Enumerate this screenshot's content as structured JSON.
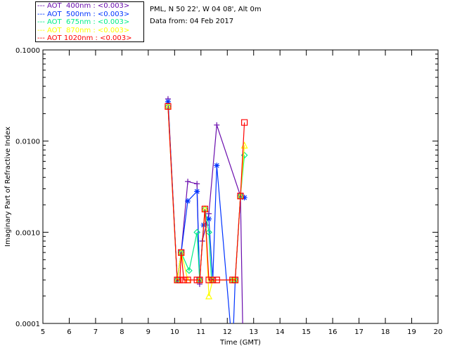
{
  "header": {
    "site_line": "PML, N 50 22', W 04 08', Alt 0m",
    "date_line": "Data from: 04 Feb 2017"
  },
  "chart_data": {
    "type": "line",
    "xlabel": "Time (GMT)",
    "ylabel": "Imaginary Part of Refractive Index",
    "xlim": [
      5,
      20
    ],
    "ylim": [
      0.0001,
      0.1
    ],
    "yscale": "log",
    "x_ticks": [
      "5",
      "6",
      "7",
      "8",
      "9",
      "10",
      "11",
      "12",
      "13",
      "14",
      "15",
      "16",
      "17",
      "18",
      "19",
      "20"
    ],
    "y_ticks": [
      "0.0001",
      "0.0010",
      "0.0100",
      "0.1000"
    ],
    "legend_placement": "top-left-outside",
    "series": [
      {
        "name": "AOT  400nm : <0.003>",
        "color": "#6a0dad",
        "marker": "plus",
        "points": [
          [
            9.75,
            0.029
          ],
          [
            10.1,
            0.0003
          ],
          [
            10.25,
            0.0006
          ],
          [
            10.5,
            0.0036
          ],
          [
            10.85,
            0.0034
          ],
          [
            10.95,
            0.00027
          ],
          [
            11.05,
            0.0008
          ],
          [
            11.2,
            0.0012
          ],
          [
            11.3,
            0.0016
          ],
          [
            11.6,
            0.015
          ],
          [
            12.5,
            0.0025
          ],
          [
            12.6,
            5e-05
          ]
        ]
      },
      {
        "name": "AOT  500nm : <0.003>",
        "color": "#0033ff",
        "marker": "asterisk",
        "points": [
          [
            9.75,
            0.027
          ],
          [
            10.1,
            0.0003
          ],
          [
            10.25,
            0.0006
          ],
          [
            10.5,
            0.0022
          ],
          [
            10.85,
            0.0028
          ],
          [
            10.95,
            0.0003
          ],
          [
            11.1,
            0.0012
          ],
          [
            11.3,
            0.0014
          ],
          [
            11.45,
            0.0003
          ],
          [
            11.6,
            0.0054
          ],
          [
            12.2,
            5e-05
          ],
          [
            12.3,
            0.0003
          ],
          [
            12.5,
            0.0025
          ],
          [
            12.65,
            0.0024
          ]
        ]
      },
      {
        "name": "AOT  675nm : <0.003>",
        "color": "#00ee88",
        "marker": "diamond",
        "points": [
          [
            9.75,
            0.024
          ],
          [
            10.1,
            0.0003
          ],
          [
            10.25,
            0.0006
          ],
          [
            10.55,
            0.00038
          ],
          [
            10.85,
            0.001
          ],
          [
            10.95,
            0.0003
          ],
          [
            11.15,
            0.0018
          ],
          [
            11.3,
            0.001
          ],
          [
            11.4,
            0.0003
          ],
          [
            12.2,
            0.0003
          ],
          [
            12.3,
            0.0003
          ],
          [
            12.5,
            0.0025
          ],
          [
            12.65,
            0.007
          ]
        ]
      },
      {
        "name": "AOT  870nm : <0.003>",
        "color": "#ffff00",
        "marker": "triangle",
        "points": [
          [
            9.75,
            0.024
          ],
          [
            10.1,
            0.0003
          ],
          [
            10.25,
            0.0006
          ],
          [
            10.5,
            0.0003
          ],
          [
            10.95,
            0.0003
          ],
          [
            11.15,
            0.0018
          ],
          [
            11.3,
            0.0002
          ],
          [
            11.45,
            0.0003
          ],
          [
            12.2,
            0.0003
          ],
          [
            12.3,
            0.0003
          ],
          [
            12.5,
            0.0025
          ],
          [
            12.65,
            0.009
          ]
        ]
      },
      {
        "name": "AOT 1020nm : <0.003>",
        "color": "#ff0000",
        "marker": "square",
        "points": [
          [
            9.75,
            0.024
          ],
          [
            10.1,
            0.0003
          ],
          [
            10.2,
            0.0003
          ],
          [
            10.25,
            0.0006
          ],
          [
            10.35,
            0.0003
          ],
          [
            10.5,
            0.0003
          ],
          [
            10.85,
            0.0003
          ],
          [
            10.95,
            0.0003
          ],
          [
            11.15,
            0.0018
          ],
          [
            11.3,
            0.0003
          ],
          [
            11.45,
            0.0003
          ],
          [
            11.6,
            0.0003
          ],
          [
            12.2,
            0.0003
          ],
          [
            12.3,
            0.0003
          ],
          [
            12.5,
            0.0025
          ],
          [
            12.65,
            0.016
          ]
        ]
      }
    ]
  }
}
